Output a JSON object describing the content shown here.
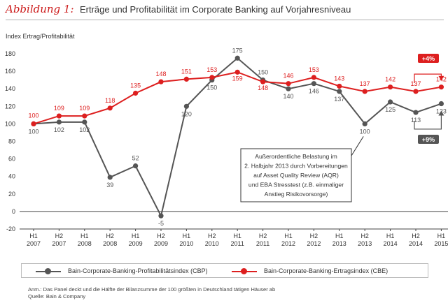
{
  "figure": {
    "label": "Abbildung 1:",
    "title": "Erträge und Profitabilität im Corporate Banking auf Vorjahresniveau"
  },
  "chart_data": {
    "type": "line",
    "ylabel": "Index Ertrag/Profitabilität",
    "ylim": [
      -20,
      180
    ],
    "yticks": [
      -20,
      0,
      20,
      40,
      60,
      80,
      100,
      120,
      140,
      160,
      180
    ],
    "categories": [
      [
        "H1",
        "2007"
      ],
      [
        "H2",
        "2007"
      ],
      [
        "H1",
        "2008"
      ],
      [
        "H2",
        "2008"
      ],
      [
        "H1",
        "2009"
      ],
      [
        "H2",
        "2009"
      ],
      [
        "H1",
        "2010"
      ],
      [
        "H2",
        "2010"
      ],
      [
        "H1",
        "2011"
      ],
      [
        "H2",
        "2011"
      ],
      [
        "H1",
        "2012"
      ],
      [
        "H2",
        "2012"
      ],
      [
        "H1",
        "2013"
      ],
      [
        "H2",
        "2013"
      ],
      [
        "H1",
        "2014"
      ],
      [
        "H2",
        "2014"
      ],
      [
        "H1",
        "2015"
      ]
    ],
    "series": [
      {
        "name": "Bain-Corporate-Banking-Profitabilitätsindex (CBP)",
        "color": "#555555",
        "values": [
          100,
          102,
          102,
          39,
          52,
          -5,
          120,
          150,
          175,
          150,
          140,
          146,
          137,
          100,
          125,
          113,
          123
        ]
      },
      {
        "name": "Bain-Corporate-Banking-Ertragsindex (CBE)",
        "color": "#dd1f1f",
        "values": [
          100,
          109,
          109,
          118,
          135,
          148,
          151,
          153,
          159,
          148,
          146,
          153,
          143,
          137,
          142,
          137,
          142
        ]
      }
    ],
    "annotation": "Außerordentliche Belastung im 2. Halbjahr 2013 durch Vorbereitungen auf Asset Quality Review (AQR) und EBA Stresstest (z.B. einmaliger Anstieg Risikovorsorge)",
    "badges": [
      {
        "text": "+4%",
        "color": "#dd1f1f"
      },
      {
        "text": "+9%",
        "color": "#555555"
      }
    ],
    "grid": false
  },
  "footnote": {
    "note": "Anm.: Das Panel deckt und die Hälfte der Bilanzsumme der 100 größten in Deutschland tätigen Häuser ab",
    "source": "Quelle: Bain & Company"
  }
}
